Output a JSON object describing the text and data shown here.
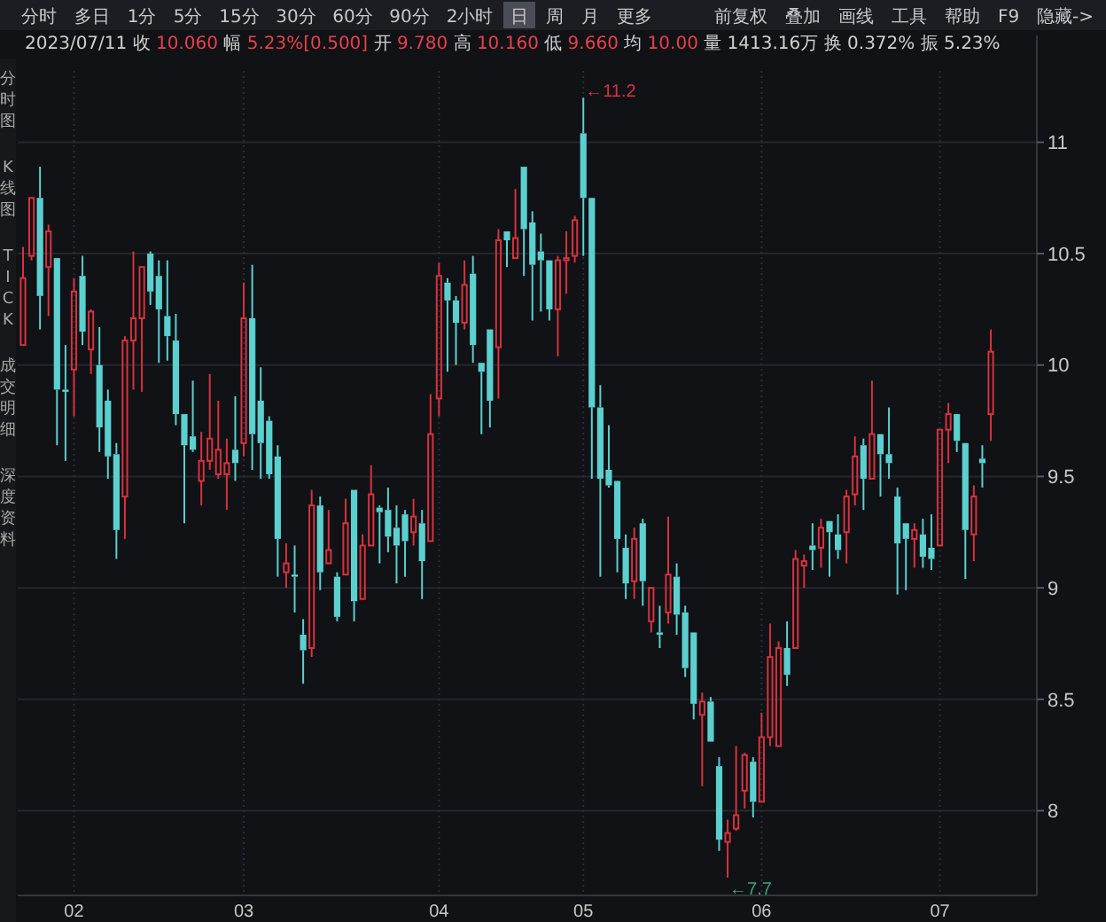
{
  "chart_data": {
    "type": "candlestick",
    "title": "2023/07/11 收 10.060 幅 5.23%[0.500] 开 9.780 高 10.160 低 9.660 均 10.00 量 1413.16万 换 0.372% 振 5.23%",
    "categories": [
      null,
      null,
      null,
      null,
      null,
      null,
      "02",
      null,
      null,
      null,
      null,
      null,
      null,
      null,
      null,
      null,
      null,
      null,
      null,
      null,
      null,
      null,
      null,
      null,
      null,
      null,
      "03",
      null,
      null,
      null,
      null,
      null,
      null,
      null,
      null,
      null,
      null,
      null,
      null,
      null,
      null,
      null,
      null,
      null,
      null,
      null,
      null,
      null,
      null,
      "04",
      null,
      null,
      null,
      null,
      null,
      null,
      null,
      null,
      null,
      null,
      null,
      null,
      null,
      null,
      null,
      null,
      "05",
      null,
      null,
      null,
      null,
      null,
      null,
      null,
      null,
      null,
      null,
      null,
      null,
      null,
      null,
      null,
      null,
      null,
      null,
      null,
      null,
      "06",
      null,
      null,
      null,
      null,
      null,
      null,
      null,
      null,
      null,
      null,
      null,
      null,
      null,
      null,
      null,
      null,
      null,
      null,
      null,
      null,
      "07",
      null,
      null,
      null,
      null,
      null,
      null
    ],
    "ohlc": [
      [
        10.09,
        10.53,
        10.09,
        10.39
      ],
      [
        10.49,
        10.75,
        10.47,
        10.75
      ],
      [
        10.75,
        10.89,
        10.16,
        10.31
      ],
      [
        10.44,
        10.63,
        10.22,
        10.6
      ],
      [
        10.48,
        10.48,
        9.64,
        9.89
      ],
      [
        9.89,
        10.09,
        9.57,
        9.88
      ],
      [
        9.98,
        10.39,
        9.77,
        10.33
      ],
      [
        10.4,
        10.49,
        10.09,
        10.15
      ],
      [
        10.07,
        10.25,
        9.96,
        10.24
      ],
      [
        10.0,
        10.17,
        9.61,
        9.72
      ],
      [
        9.84,
        9.89,
        9.49,
        9.59
      ],
      [
        9.6,
        9.65,
        9.13,
        9.26
      ],
      [
        9.41,
        10.13,
        9.22,
        10.11
      ],
      [
        10.11,
        10.51,
        9.89,
        10.21
      ],
      [
        10.21,
        10.44,
        9.88,
        10.44
      ],
      [
        10.5,
        10.51,
        10.27,
        10.33
      ],
      [
        10.4,
        10.47,
        10.01,
        10.25
      ],
      [
        10.22,
        10.47,
        10.02,
        10.13
      ],
      [
        10.11,
        10.23,
        9.73,
        9.78
      ],
      [
        9.78,
        9.78,
        9.29,
        9.64
      ],
      [
        9.68,
        9.93,
        9.61,
        9.62
      ],
      [
        9.48,
        9.7,
        9.37,
        9.57
      ],
      [
        9.57,
        9.96,
        9.53,
        9.67
      ],
      [
        9.51,
        9.84,
        9.49,
        9.62
      ],
      [
        9.51,
        9.67,
        9.35,
        9.56
      ],
      [
        9.62,
        9.86,
        9.48,
        9.56
      ],
      [
        9.65,
        10.37,
        9.59,
        10.21
      ],
      [
        10.21,
        10.45,
        9.53,
        9.69
      ],
      [
        9.84,
        9.99,
        9.49,
        9.65
      ],
      [
        9.75,
        9.77,
        9.49,
        9.51
      ],
      [
        9.59,
        9.64,
        9.05,
        9.22
      ],
      [
        9.07,
        9.2,
        9.0,
        9.11
      ],
      [
        9.06,
        9.19,
        8.89,
        9.05
      ],
      [
        8.79,
        8.86,
        8.57,
        8.72
      ],
      [
        8.73,
        9.44,
        8.69,
        9.37
      ],
      [
        9.37,
        9.41,
        8.99,
        9.07
      ],
      [
        9.11,
        9.35,
        9.11,
        9.17
      ],
      [
        9.05,
        9.07,
        8.85,
        8.87
      ],
      [
        9.06,
        9.4,
        9.06,
        9.29
      ],
      [
        9.44,
        9.44,
        8.85,
        8.94
      ],
      [
        8.95,
        9.24,
        8.95,
        9.19
      ],
      [
        9.19,
        9.55,
        9.19,
        9.42
      ],
      [
        9.36,
        9.37,
        9.11,
        9.34
      ],
      [
        9.35,
        9.45,
        9.16,
        9.23
      ],
      [
        9.27,
        9.37,
        9.02,
        9.19
      ],
      [
        9.33,
        9.35,
        9.05,
        9.21
      ],
      [
        9.25,
        9.4,
        9.19,
        9.32
      ],
      [
        9.29,
        9.35,
        8.95,
        9.12
      ],
      [
        9.21,
        9.87,
        9.21,
        9.69
      ],
      [
        9.85,
        10.46,
        9.77,
        10.4
      ],
      [
        10.37,
        10.39,
        9.97,
        10.29
      ],
      [
        10.29,
        10.31,
        10.0,
        10.19
      ],
      [
        10.19,
        10.47,
        10.16,
        10.36
      ],
      [
        10.41,
        10.49,
        10.01,
        10.09
      ],
      [
        10.01,
        10.01,
        9.69,
        9.97
      ],
      [
        10.16,
        10.16,
        9.72,
        9.84
      ],
      [
        10.08,
        10.61,
        9.85,
        10.56
      ],
      [
        10.6,
        10.6,
        10.44,
        10.56
      ],
      [
        10.48,
        10.79,
        10.48,
        10.57
      ],
      [
        10.89,
        10.89,
        10.4,
        10.61
      ],
      [
        10.64,
        10.69,
        10.2,
        10.45
      ],
      [
        10.51,
        10.59,
        10.24,
        10.47
      ],
      [
        10.47,
        10.47,
        10.2,
        10.25
      ],
      [
        10.25,
        10.49,
        10.04,
        10.47
      ],
      [
        10.47,
        10.6,
        10.32,
        10.48
      ],
      [
        10.49,
        10.67,
        10.46,
        10.65
      ],
      [
        11.04,
        11.2,
        10.49,
        10.75
      ],
      [
        10.75,
        10.75,
        9.49,
        9.81
      ],
      [
        9.81,
        9.91,
        9.05,
        9.49
      ],
      [
        9.53,
        9.73,
        9.45,
        9.46
      ],
      [
        9.48,
        9.48,
        9.07,
        9.22
      ],
      [
        9.18,
        9.24,
        8.95,
        9.02
      ],
      [
        9.03,
        9.27,
        8.95,
        9.22
      ],
      [
        9.29,
        9.31,
        8.92,
        9.03
      ],
      [
        8.85,
        9.0,
        8.8,
        9.0
      ],
      [
        8.8,
        8.92,
        8.73,
        8.79
      ],
      [
        8.89,
        9.32,
        8.84,
        9.06
      ],
      [
        9.05,
        9.11,
        8.79,
        8.88
      ],
      [
        8.89,
        8.92,
        8.6,
        8.64
      ],
      [
        8.8,
        8.8,
        8.41,
        8.48
      ],
      [
        8.43,
        8.53,
        8.11,
        8.49
      ],
      [
        8.49,
        8.51,
        8.31,
        8.31
      ],
      [
        8.2,
        8.24,
        7.82,
        7.87
      ],
      [
        7.86,
        7.96,
        7.7,
        7.9
      ],
      [
        7.92,
        8.29,
        7.91,
        7.98
      ],
      [
        8.09,
        8.26,
        8.01,
        8.25
      ],
      [
        8.22,
        8.24,
        7.97,
        8.04
      ],
      [
        8.04,
        8.44,
        8.04,
        8.33
      ],
      [
        8.33,
        8.84,
        8.29,
        8.69
      ],
      [
        8.29,
        8.76,
        8.29,
        8.73
      ],
      [
        8.73,
        8.85,
        8.56,
        8.61
      ],
      [
        8.73,
        9.17,
        8.73,
        9.13
      ],
      [
        9.1,
        9.15,
        9.0,
        9.12
      ],
      [
        9.19,
        9.29,
        9.08,
        9.17
      ],
      [
        9.18,
        9.31,
        9.09,
        9.27
      ],
      [
        9.3,
        9.3,
        9.05,
        9.25
      ],
      [
        9.24,
        9.33,
        9.13,
        9.17
      ],
      [
        9.25,
        9.44,
        9.11,
        9.41
      ],
      [
        9.42,
        9.68,
        9.37,
        9.59
      ],
      [
        9.64,
        9.67,
        9.35,
        9.49
      ],
      [
        9.49,
        9.93,
        9.49,
        9.69
      ],
      [
        9.69,
        9.69,
        9.41,
        9.6
      ],
      [
        9.6,
        9.81,
        9.49,
        9.56
      ],
      [
        9.41,
        9.45,
        8.97,
        9.2
      ],
      [
        9.29,
        9.29,
        8.99,
        9.22
      ],
      [
        9.22,
        9.29,
        9.09,
        9.26
      ],
      [
        9.24,
        9.31,
        9.09,
        9.14
      ],
      [
        9.18,
        9.33,
        9.08,
        9.13
      ],
      [
        9.19,
        9.71,
        9.19,
        9.71
      ],
      [
        9.71,
        9.83,
        9.56,
        9.78
      ],
      [
        9.78,
        9.78,
        9.61,
        9.66
      ],
      [
        9.65,
        9.65,
        9.04,
        9.26
      ],
      [
        9.24,
        9.46,
        9.12,
        9.41
      ],
      [
        9.58,
        9.64,
        9.45,
        9.56
      ],
      [
        9.78,
        10.16,
        9.66,
        10.06
      ]
    ],
    "colors": [
      "#d8323c",
      "#d8323c",
      "#5ccfcf",
      "#d8323c",
      "#5ccfcf",
      "#5ccfcf",
      "#d8323c",
      "#5ccfcf",
      "#d8323c",
      "#5ccfcf",
      "#5ccfcf",
      "#5ccfcf",
      "#d8323c",
      "#d8323c",
      "#d8323c",
      "#5ccfcf",
      "#5ccfcf",
      "#5ccfcf",
      "#5ccfcf",
      "#5ccfcf",
      "#5ccfcf",
      "#d8323c",
      "#d8323c",
      "#d8323c",
      "#d8323c",
      "#5ccfcf",
      "#d8323c",
      "#5ccfcf",
      "#5ccfcf",
      "#5ccfcf",
      "#5ccfcf",
      "#d8323c",
      "#5ccfcf",
      "#5ccfcf",
      "#d8323c",
      "#5ccfcf",
      "#d8323c",
      "#5ccfcf",
      "#d8323c",
      "#5ccfcf",
      "#d8323c",
      "#d8323c",
      "#5ccfcf",
      "#5ccfcf",
      "#5ccfcf",
      "#5ccfcf",
      "#d8323c",
      "#5ccfcf",
      "#d8323c",
      "#d8323c",
      "#5ccfcf",
      "#5ccfcf",
      "#d8323c",
      "#5ccfcf",
      "#5ccfcf",
      "#5ccfcf",
      "#d8323c",
      "#5ccfcf",
      "#d8323c",
      "#5ccfcf",
      "#5ccfcf",
      "#5ccfcf",
      "#5ccfcf",
      "#d8323c",
      "#d8323c",
      "#d8323c",
      "#5ccfcf",
      "#5ccfcf",
      "#5ccfcf",
      "#5ccfcf",
      "#5ccfcf",
      "#5ccfcf",
      "#d8323c",
      "#5ccfcf",
      "#d8323c",
      "#5ccfcf",
      "#d8323c",
      "#5ccfcf",
      "#5ccfcf",
      "#5ccfcf",
      "#d8323c",
      "#5ccfcf",
      "#5ccfcf",
      "#d8323c",
      "#d8323c",
      "#d8323c",
      "#5ccfcf",
      "#d8323c",
      "#d8323c",
      "#d8323c",
      "#5ccfcf",
      "#d8323c",
      "#d8323c",
      "#5ccfcf",
      "#d8323c",
      "#5ccfcf",
      "#5ccfcf",
      "#d8323c",
      "#d8323c",
      "#5ccfcf",
      "#d8323c",
      "#5ccfcf",
      "#5ccfcf",
      "#5ccfcf",
      "#5ccfcf",
      "#d8323c",
      "#5ccfcf",
      "#5ccfcf",
      "#d8323c",
      "#d8323c",
      "#5ccfcf",
      "#5ccfcf",
      "#d8323c",
      "#5ccfcf",
      "#d8323c"
    ],
    "ylim": [
      7.62,
      11.32
    ],
    "yticks": [
      8,
      8.5,
      9,
      9.5,
      10,
      10.5,
      11
    ],
    "grid": true,
    "annotations": [
      "分时",
      "多日",
      "1分",
      "5分",
      "15分",
      "30分",
      "60分",
      "90分",
      "2小时",
      "日",
      "周",
      "月",
      "更多",
      "前复权",
      "叠加",
      "画线",
      "工具",
      "帮助",
      "F9",
      "隐藏->",
      "分时图",
      "K线图",
      "TICK",
      "成交明细",
      "深度资料",
      "←11.2",
      "←7.7"
    ]
  }
}
